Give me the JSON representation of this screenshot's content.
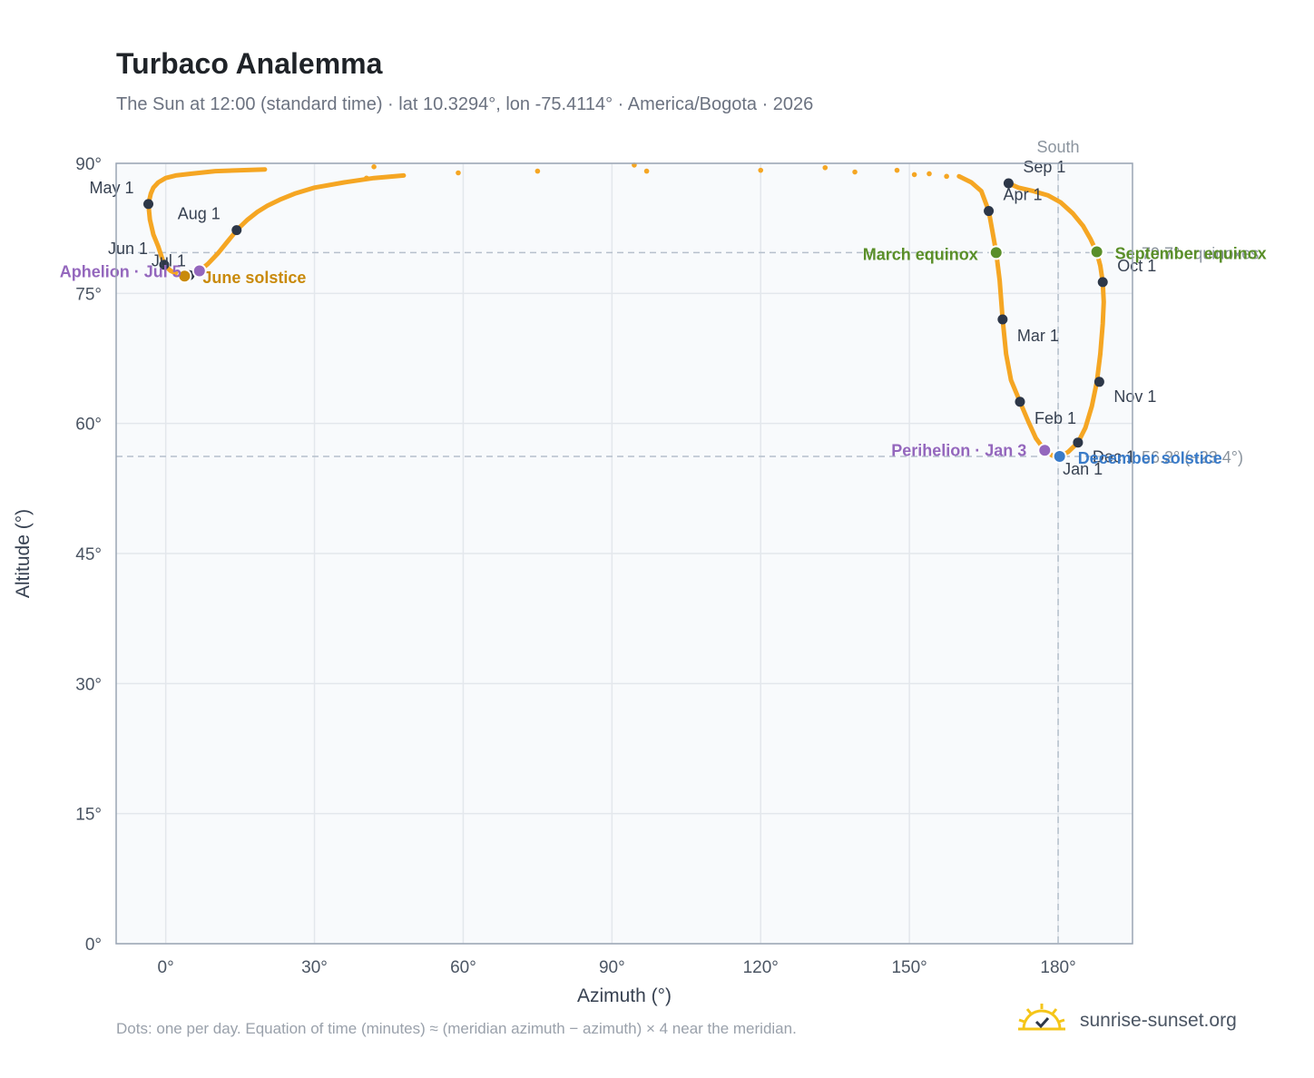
{
  "title": "Turbaco Analemma",
  "subtitle": "The Sun at 12:00 (standard time) · lat 10.3294°, lon -75.4114° · America/Bogota · 2026",
  "footnote": "Dots: one per day. Equation of time (minutes) ≈ (meridian azimuth − azimuth) × 4 near the meridian.",
  "brand": {
    "text": "sunrise-sunset.org",
    "icon": "sun-logo-icon"
  },
  "colors": {
    "curve": "#f5a623",
    "month_marker": "#2d3748",
    "equinox": "#5a8f29",
    "solstice_june": "#c98a0b",
    "solstice_december": "#3a7bc8",
    "apsis": "#9467bd",
    "reference_line": "#b6c0cc",
    "plot_background": "#f8fafc"
  },
  "chart_data": {
    "type": "scatter",
    "title": "Turbaco Analemma",
    "xlabel": "Azimuth (°)",
    "ylabel": "Altitude (°)",
    "xlim": [
      -10,
      195
    ],
    "ylim": [
      0,
      90
    ],
    "x_ticks": [
      0,
      30,
      60,
      90,
      120,
      150,
      180
    ],
    "x_tick_labels": [
      "0°",
      "30°",
      "60°",
      "90°",
      "120°",
      "150°",
      "180°"
    ],
    "y_ticks": [
      0,
      15,
      30,
      45,
      60,
      75,
      90
    ],
    "y_tick_labels": [
      "0°",
      "15°",
      "30°",
      "45°",
      "60°",
      "75°",
      "90°"
    ],
    "grid": true,
    "meridian": {
      "azimuth": 180,
      "label": "South"
    },
    "reference_lines": [
      {
        "altitude": 79.7,
        "label": "79.7° equinoxes"
      },
      {
        "altitude": 56.2,
        "label": "56.2° (−23.4°)"
      }
    ],
    "curve_segments": [
      {
        "name": "",
        "points": [
          [
            -3.5,
            85.3
          ],
          [
            -3,
            86.5
          ],
          [
            -2.5,
            87.2
          ],
          [
            -1.5,
            87.8
          ],
          [
            0,
            88.3
          ],
          [
            2,
            88.6
          ],
          [
            5,
            88.8
          ],
          [
            10,
            89.1
          ],
          [
            20,
            89.3
          ]
        ]
      },
      {
        "name": "",
        "points": [
          [
            -3.5,
            85.3
          ],
          [
            -3.2,
            83.5
          ],
          [
            -2.5,
            81.8
          ],
          [
            -1.5,
            80.4
          ],
          [
            -0.3,
            78.3
          ],
          [
            1,
            77.6
          ],
          [
            2.5,
            77.2
          ],
          [
            3.8,
            77.0
          ],
          [
            5.2,
            77.1
          ],
          [
            6.8,
            77.6
          ],
          [
            8.5,
            78.4
          ],
          [
            10.5,
            79.6
          ],
          [
            12.5,
            81.0
          ],
          [
            14.5,
            82.4
          ],
          [
            16.5,
            83.5
          ],
          [
            18.5,
            84.4
          ],
          [
            20.5,
            85.1
          ],
          [
            23,
            85.8
          ],
          [
            26,
            86.5
          ],
          [
            30,
            87.2
          ],
          [
            36,
            87.8
          ],
          [
            42,
            88.3
          ],
          [
            48,
            88.6
          ]
        ]
      },
      {
        "name": "",
        "points": [
          [
            160,
            88.5
          ],
          [
            162.5,
            87.8
          ],
          [
            164.5,
            86.8
          ],
          [
            166,
            84.5
          ],
          [
            166.8,
            82.0
          ],
          [
            167.5,
            79.7
          ],
          [
            168.2,
            76.5
          ],
          [
            168.8,
            72.0
          ],
          [
            169.5,
            68.0
          ],
          [
            170.5,
            65.0
          ],
          [
            172.3,
            62.5
          ],
          [
            174,
            60.2
          ],
          [
            175.5,
            58.3
          ],
          [
            177.3,
            56.9
          ],
          [
            178.8,
            56.3
          ],
          [
            180.3,
            56.2
          ],
          [
            182,
            56.7
          ],
          [
            184,
            57.8
          ],
          [
            185.5,
            59.5
          ],
          [
            186.8,
            62.0
          ],
          [
            187.8,
            64.8
          ],
          [
            188.5,
            68.0
          ],
          [
            189.0,
            71.5
          ],
          [
            189.2,
            74.0
          ],
          [
            189.0,
            76.3
          ],
          [
            188.5,
            78.2
          ],
          [
            187.8,
            79.7
          ],
          [
            186.5,
            81.3
          ],
          [
            185,
            82.8
          ],
          [
            183,
            84.2
          ],
          [
            180.5,
            85.5
          ],
          [
            178,
            86.3
          ],
          [
            175,
            86.8
          ],
          [
            172,
            87.2
          ],
          [
            170,
            87.7
          ]
        ]
      }
    ],
    "scattered_points": [
      [
        94.5,
        89.8
      ],
      [
        97,
        89.1
      ],
      [
        120,
        89.2
      ],
      [
        133,
        89.5
      ],
      [
        139,
        89.0
      ],
      [
        147.5,
        89.2
      ],
      [
        151,
        88.7
      ],
      [
        154,
        88.8
      ],
      [
        157.5,
        88.5
      ],
      [
        75,
        89.1
      ],
      [
        59,
        88.9
      ],
      [
        42,
        89.6
      ],
      [
        40.5,
        88.3
      ]
    ],
    "month_markers": [
      {
        "label": "Jan 1",
        "x": 180.2,
        "y": 56.2
      },
      {
        "label": "Feb 1",
        "x": 172.3,
        "y": 62.5
      },
      {
        "label": "Mar 1",
        "x": 168.8,
        "y": 72.0
      },
      {
        "label": "Apr 1",
        "x": 166.0,
        "y": 84.5
      },
      {
        "label": "May 1",
        "x": -3.5,
        "y": 85.3
      },
      {
        "label": "Jun 1",
        "x": -0.3,
        "y": 78.3
      },
      {
        "label": "Jul 1",
        "x": 4.8,
        "y": 77.1
      },
      {
        "label": "Aug 1",
        "x": 14.3,
        "y": 82.3
      },
      {
        "label": "Sep 1",
        "x": 170.0,
        "y": 87.7
      },
      {
        "label": "Oct 1",
        "x": 189.0,
        "y": 76.3
      },
      {
        "label": "Nov 1",
        "x": 188.3,
        "y": 64.8
      },
      {
        "label": "Dec 1",
        "x": 184.0,
        "y": 57.8
      }
    ],
    "events": [
      {
        "label": "March equinox",
        "x": 167.5,
        "y": 79.7,
        "kind": "equinox"
      },
      {
        "label": "September equinox",
        "x": 187.8,
        "y": 79.8,
        "kind": "equinox"
      },
      {
        "label": "June solstice",
        "x": 3.8,
        "y": 77.0,
        "kind": "solstice_june"
      },
      {
        "label": "December solstice",
        "x": 180.3,
        "y": 56.2,
        "kind": "solstice_december"
      },
      {
        "label": "Aphelion · Jul 5",
        "x": 6.8,
        "y": 77.6,
        "kind": "apsis"
      },
      {
        "label": "Perihelion · Jan 3",
        "x": 177.3,
        "y": 56.9,
        "kind": "apsis"
      }
    ]
  }
}
